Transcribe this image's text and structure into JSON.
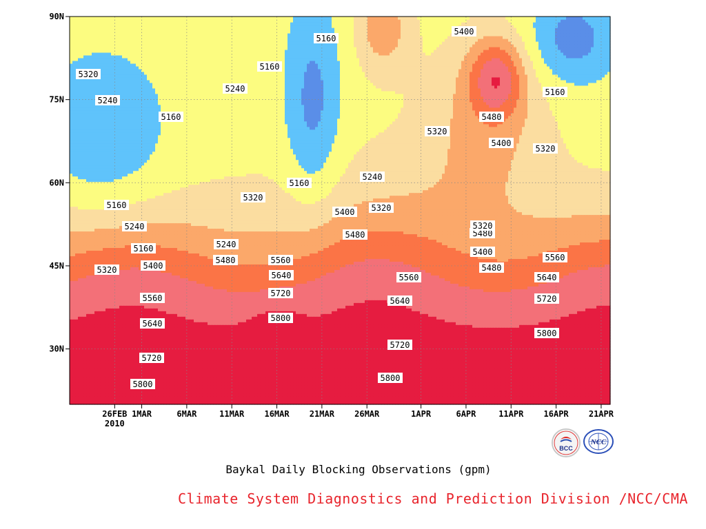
{
  "title": "Baykal Daily Blocking Observations (gpm)",
  "credit": "Climate System Diagnostics and Prediction Division /NCC/CMA",
  "logos": {
    "left": "BCC",
    "right": "NCC"
  },
  "chart_data": {
    "type": "heatmap",
    "subtype": "filled contour (time-latitude Hovmoller)",
    "x_axis": {
      "kind": "date",
      "range": [
        "2010-02-21",
        "2010-04-22"
      ],
      "tick_labels": [
        "26FEB",
        "1MAR",
        "6MAR",
        "11MAR",
        "16MAR",
        "21MAR",
        "26MAR",
        "1APR",
        "6APR",
        "11APR",
        "16APR",
        "21APR"
      ],
      "tick_dates": [
        "2010-02-26",
        "2010-03-01",
        "2010-03-06",
        "2010-03-11",
        "2010-03-16",
        "2010-03-21",
        "2010-03-26",
        "2010-04-01",
        "2010-04-06",
        "2010-04-11",
        "2010-04-16",
        "2010-04-21"
      ],
      "year_label": "2010"
    },
    "y_axis": {
      "range": [
        20,
        90
      ],
      "tick_values": [
        30,
        45,
        60,
        75,
        90
      ],
      "tick_labels": [
        "30N",
        "45N",
        "60N",
        "75N",
        "90N"
      ]
    },
    "grid": true,
    "contour_levels": [
      5080,
      5160,
      5240,
      5320,
      5400,
      5480,
      5560,
      5640,
      5720,
      5800,
      5880
    ],
    "band_colors": [
      "#0c1070",
      "#1222e0",
      "#4a58ec",
      "#5a8ee8",
      "#5fc3fb",
      "#fcfc80",
      "#fbdda0",
      "#fba86a",
      "#fb7446",
      "#f37078",
      "#e61c40"
    ],
    "contour_labels": [
      "5320",
      "5240",
      "5160",
      "5160",
      "5240",
      "5160",
      "5160",
      "5400",
      "5480",
      "5320",
      "5400",
      "5320",
      "5160",
      "5160",
      "5240",
      "5240",
      "5320",
      "5400",
      "5320",
      "5160",
      "5240",
      "5320",
      "5400",
      "5480",
      "5400",
      "5480",
      "5560",
      "5640",
      "5720",
      "5800",
      "5400",
      "5480",
      "5560",
      "5640",
      "5720",
      "5800",
      "5560",
      "5640",
      "5720",
      "5800",
      "5480",
      "5400",
      "5320",
      "5560",
      "5640",
      "5720",
      "5800"
    ]
  }
}
